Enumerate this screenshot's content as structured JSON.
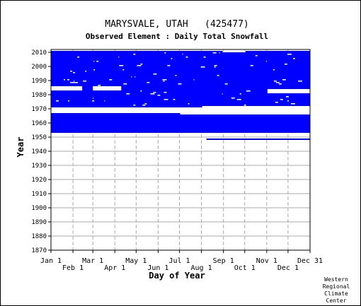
{
  "chart_data": {
    "type": "heatmap",
    "title": "MARYSVALE, UTAH   (425477)",
    "subtitle": "Observed Element : Daily Total Snowfall",
    "xlabel": "Day of Year",
    "ylabel": "Year",
    "xlim": [
      1,
      366
    ],
    "ylim": [
      1870,
      2012
    ],
    "x_ticks_top": [
      "Jan 1",
      "Mar 1",
      "May 1",
      "Jul 1",
      "Sep 1",
      "Nov 1",
      "Dec 31"
    ],
    "x_ticks_bottom": [
      "Feb 1",
      "Apr 1",
      "Jun 1",
      "Aug 1",
      "Oct 1",
      "Dec 1"
    ],
    "y_ticks": [
      "2010",
      "2000",
      "1990",
      "1980",
      "1970",
      "1960",
      "1950",
      "1940",
      "1930",
      "1920",
      "1910",
      "1900",
      "1890",
      "1880",
      "1870"
    ],
    "grid": true,
    "colors": {
      "data_present": "#0000ff",
      "background": "#ffffff",
      "grid": "#aaaaaa"
    },
    "data_present_spans": [
      {
        "years": [
          1971,
          2010
        ],
        "days": [
          1,
          366
        ]
      },
      {
        "years": [
          1953,
          1966
        ],
        "days": [
          1,
          366
        ]
      },
      {
        "years": [
          1948,
          1948
        ],
        "days": [
          220,
          441
        ]
      },
      {
        "years": [
          1953,
          1953
        ],
        "days": [
          45,
          63
        ]
      }
    ],
    "missing_spans": [
      {
        "years": [
          1967,
          1970
        ],
        "days": [
          1,
          366
        ]
      },
      {
        "years": [
          1971,
          1971
        ],
        "days": [
          214,
          366
        ]
      },
      {
        "years": [
          1966,
          1966
        ],
        "days": [
          183,
          366
        ]
      },
      {
        "years": [
          2010,
          2010
        ],
        "days": [
          243,
          275
        ]
      },
      {
        "years": [
          1981,
          1983
        ],
        "days": [
          306,
          366
        ]
      },
      {
        "years": [
          1983,
          1985
        ],
        "days": [
          1,
          45
        ]
      },
      {
        "years": [
          1983,
          1985
        ],
        "days": [
          60,
          100
        ]
      }
    ]
  },
  "credit": [
    "Western",
    "Regional",
    "Climate",
    "Center"
  ]
}
